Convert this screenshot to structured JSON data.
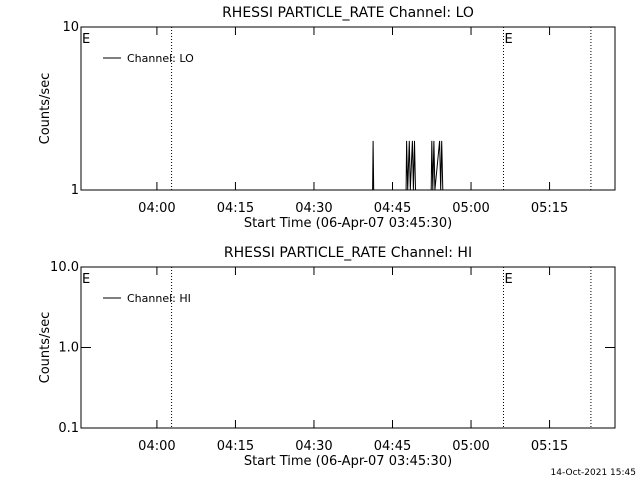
{
  "chart_data": [
    {
      "type": "line",
      "title": "RHESSI PARTICLE_RATE Channel: LO",
      "xlabel": "Start Time (06-Apr-07 03:45:30)",
      "ylabel": "Counts/sec",
      "log_y": true,
      "xlim": [
        225.5,
        327.5
      ],
      "xticks": [
        {
          "value": 240,
          "label": "04:00"
        },
        {
          "value": 255,
          "label": "04:15"
        },
        {
          "value": 270,
          "label": "04:30"
        },
        {
          "value": 285,
          "label": "04:45"
        },
        {
          "value": 300,
          "label": "05:00"
        },
        {
          "value": 315,
          "label": "05:15"
        }
      ],
      "ylim": [
        1,
        10
      ],
      "yticks": [
        1,
        10
      ],
      "vlines": [
        242.8,
        306.2,
        322.9
      ],
      "annotations": [
        {
          "text": "E",
          "x": 225.5
        },
        {
          "text": "E",
          "x": 306.2
        }
      ],
      "legend": "top-left",
      "series": [
        {
          "name": "Channel: LO",
          "color": "#000000",
          "x": [
            280.9,
            281.2,
            281.3,
            281.4,
            281.7,
            null,
            287.4,
            287.6,
            287.7,
            287.9,
            288.2,
            288.4,
            288.8,
            289.0,
            289.2,
            289.4,
            289.6,
            null,
            292.2,
            292.4,
            292.5,
            292.7,
            292.9,
            293.1,
            294.0,
            294.2,
            294.4,
            294.6
          ],
          "values": [
            1,
            1,
            2,
            1,
            1,
            null,
            1,
            1,
            2,
            1,
            2,
            1,
            2,
            1,
            2,
            1,
            1,
            null,
            1,
            1,
            2,
            1,
            2,
            1,
            2,
            1,
            2,
            1
          ]
        }
      ]
    },
    {
      "type": "line",
      "title": "RHESSI PARTICLE_RATE Channel: HI",
      "xlabel": "Start Time (06-Apr-07 03:45:30)",
      "ylabel": "Counts/sec",
      "log_y": true,
      "xlim": [
        225.5,
        327.5
      ],
      "xticks": [
        {
          "value": 240,
          "label": "04:00"
        },
        {
          "value": 255,
          "label": "04:15"
        },
        {
          "value": 270,
          "label": "04:30"
        },
        {
          "value": 285,
          "label": "04:45"
        },
        {
          "value": 300,
          "label": "05:00"
        },
        {
          "value": 315,
          "label": "05:15"
        }
      ],
      "ylim": [
        0.1,
        10
      ],
      "yticks": [
        0.1,
        {
          "value": 1,
          "label": "1.0"
        },
        {
          "value": 10,
          "label": "10.0"
        }
      ],
      "vlines": [
        242.8,
        306.2,
        322.9
      ],
      "annotations": [
        {
          "text": "E",
          "x": 225.5
        },
        {
          "text": "E",
          "x": 306.2
        }
      ],
      "legend": "top-left",
      "series": [
        {
          "name": "Channel: HI",
          "color": "#000000",
          "x": [],
          "values": []
        }
      ]
    }
  ],
  "timestamp": "14-Oct-2021 15:45"
}
